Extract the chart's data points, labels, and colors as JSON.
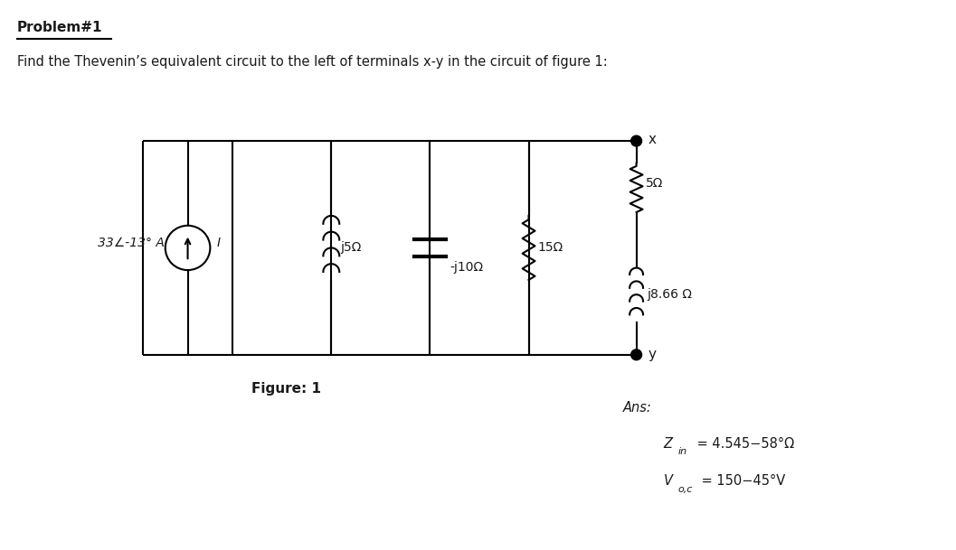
{
  "title_bold": "Problem#1",
  "subtitle": "Find the Thevenin’s equivalent circuit to the left of terminals x-y in the circuit of figure 1:",
  "figure_label": "Figure: 1",
  "source_label": "33∠-13° A",
  "source_sublabel": "I",
  "components": {
    "inductor1_label": "j5Ω",
    "capacitor_label": "-j10Ω",
    "resistor1_label": "15Ω",
    "resistor2_label": "5Ω",
    "inductor2_label": "j8.66 Ω",
    "terminal_x": "x",
    "terminal_y": "y"
  },
  "ans_title": "Ans:",
  "ans_zin_lhs": "Z",
  "ans_zin_sub": "in",
  "ans_zin_rhs": " = 4.545−58°Ω",
  "ans_voc_lhs": "V",
  "ans_voc_sub": "o,c",
  "ans_voc_rhs": " = 150−45°V",
  "bg_color": "#ffffff",
  "line_color": "#000000",
  "font_color": "#1a1a1a"
}
